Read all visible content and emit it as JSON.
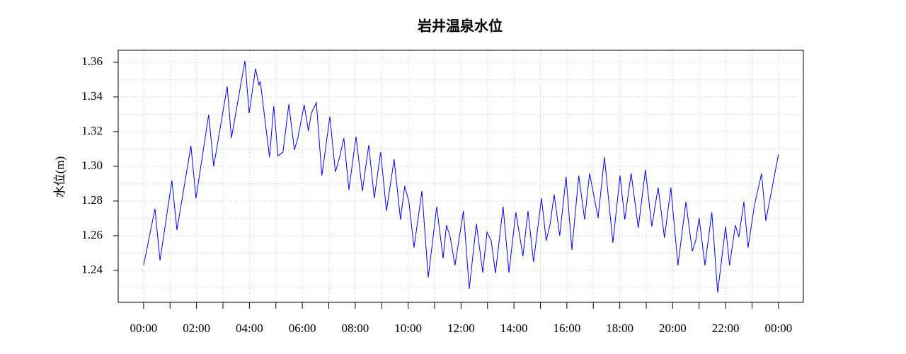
{
  "chart_data": {
    "type": "line",
    "title": "岩井温泉水位",
    "y_label": "水位(m)",
    "color": "#0000ff",
    "grid": true,
    "x": [
      0,
      0.43,
      0.62,
      1.07,
      1.26,
      1.79,
      1.98,
      2.46,
      2.65,
      3.16,
      3.32,
      3.83,
      3.99,
      4.23,
      4.36,
      4.41,
      4.76,
      4.92,
      5.08,
      5.27,
      5.49,
      5.7,
      5.83,
      6.07,
      6.23,
      6.34,
      6.53,
      6.74,
      7.04,
      7.25,
      7.41,
      7.57,
      7.76,
      8.03,
      8.27,
      8.51,
      8.72,
      8.96,
      9.18,
      9.47,
      9.71,
      9.87,
      10.03,
      10.22,
      10.52,
      10.76,
      11.08,
      11.32,
      11.45,
      11.59,
      11.77,
      12.09,
      12.31,
      12.58,
      12.82,
      12.98,
      13.14,
      13.3,
      13.59,
      13.81,
      14.07,
      14.34,
      14.53,
      14.74,
      15.04,
      15.22,
      15.36,
      15.52,
      15.73,
      15.97,
      16.19,
      16.45,
      16.67,
      16.86,
      17.18,
      17.42,
      17.74,
      18.01,
      18.19,
      18.43,
      18.7,
      18.97,
      19.21,
      19.45,
      19.69,
      19.93,
      20.2,
      20.5,
      20.74,
      20.87,
      21.0,
      21.22,
      21.48,
      21.7,
      22.0,
      22.15,
      22.37,
      22.5,
      22.69,
      22.85,
      23.09,
      23.36,
      23.52,
      24.0
    ],
    "values": [
      1.243,
      1.2755,
      1.2457,
      1.2918,
      1.2633,
      1.3118,
      1.2816,
      1.3298,
      1.3,
      1.3461,
      1.3163,
      1.3608,
      1.3306,
      1.3563,
      1.3469,
      1.349,
      1.3053,
      1.3347,
      1.306,
      1.3082,
      1.3359,
      1.3094,
      1.3163,
      1.3355,
      1.3204,
      1.3306,
      1.3367,
      1.2947,
      1.3286,
      1.2967,
      1.3053,
      1.3163,
      1.2865,
      1.3171,
      1.2857,
      1.3122,
      1.2816,
      1.3082,
      1.2743,
      1.3041,
      1.2694,
      1.2886,
      1.2796,
      1.2531,
      1.2857,
      1.2359,
      1.2767,
      1.2469,
      1.2661,
      1.2592,
      1.2429,
      1.2743,
      1.2294,
      1.2669,
      1.2388,
      1.262,
      1.2571,
      1.2384,
      1.2767,
      1.2388,
      1.2735,
      1.2482,
      1.2743,
      1.2449,
      1.2816,
      1.2571,
      1.2661,
      1.2837,
      1.26,
      1.2939,
      1.2518,
      1.2947,
      1.2694,
      1.2959,
      1.2702,
      1.3053,
      1.2559,
      1.2947,
      1.2694,
      1.2959,
      1.2645,
      1.298,
      1.2653,
      1.2878,
      1.2588,
      1.2878,
      1.2429,
      1.2796,
      1.251,
      1.2571,
      1.2702,
      1.2429,
      1.2735,
      1.2273,
      1.2653,
      1.2429,
      1.2661,
      1.2592,
      1.2796,
      1.2531,
      1.2776,
      1.2959,
      1.2686,
      1.3069
    ],
    "xlim": [
      -0.96,
      24.94
    ],
    "ylim": [
      1.2216,
      1.3669
    ],
    "xticks": [
      {
        "value": 0,
        "label": "00:00"
      },
      {
        "value": 2,
        "label": "02:00"
      },
      {
        "value": 4,
        "label": "04:00"
      },
      {
        "value": 6,
        "label": "06:00"
      },
      {
        "value": 8,
        "label": "08:00"
      },
      {
        "value": 10,
        "label": "10:00"
      },
      {
        "value": 12,
        "label": "12:00"
      },
      {
        "value": 14,
        "label": "14:00"
      },
      {
        "value": 16,
        "label": "16:00"
      },
      {
        "value": 18,
        "label": "18:00"
      },
      {
        "value": 20,
        "label": "20:00"
      },
      {
        "value": 22,
        "label": "22:00"
      },
      {
        "value": 24,
        "label": "00:00"
      }
    ],
    "x_minor_ticks": [
      1,
      3,
      5,
      7,
      9,
      11,
      13,
      15,
      17,
      19,
      21,
      23
    ],
    "yticks": [
      1.24,
      1.26,
      1.28,
      {
        "value": 1.3,
        "label": "1.30"
      },
      1.32,
      1.34,
      1.36
    ],
    "y_minor_ticks": [
      1.23,
      1.25,
      1.27,
      1.29,
      1.31,
      1.33,
      1.35
    ]
  }
}
